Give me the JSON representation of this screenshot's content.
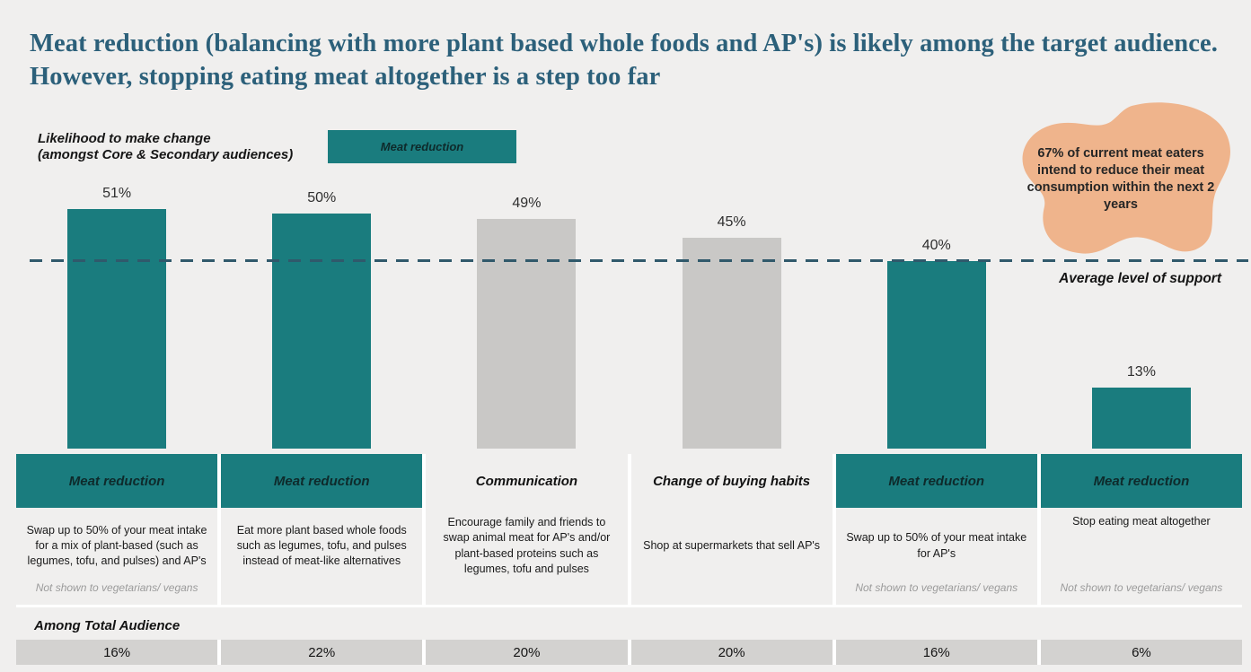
{
  "title": "Meat reduction (balancing with more plant based whole foods and AP's) is likely among the target audience. However, stopping eating meat altogether is a step too far",
  "colors": {
    "page_bg": "#f0efee",
    "teal": "#1a7c7e",
    "bar_gray": "#c9c8c6",
    "footer_box_gray": "#d3d2d0",
    "title_color": "#2c607a",
    "dashed_line": "#30596b",
    "note_gray": "#9b9b9b",
    "callout_orange": "#efb48c"
  },
  "chart": {
    "axis_label_line1": "Likelihood to make change",
    "axis_label_line2": "(amongst Core & Secondary audiences)",
    "legend_label": "Meat reduction",
    "callout": "67% of current meat eaters intend to reduce their meat consumption within the next 2 years",
    "average_line_label": "Average level of support"
  },
  "chart_data": {
    "type": "bar",
    "title": "Likelihood to make change (amongst Core & Secondary audiences)",
    "unit": "%",
    "ylim": [
      0,
      55
    ],
    "grid": false,
    "legend": [
      "Meat reduction"
    ],
    "legend_position": "top",
    "categories": [
      "Meat reduction",
      "Meat reduction",
      "Communication",
      "Change of buying habits",
      "Meat reduction",
      "Meat reduction"
    ],
    "values": [
      51,
      50,
      49,
      45,
      40,
      13
    ],
    "highlighted": [
      true,
      true,
      false,
      false,
      true,
      true
    ],
    "descriptions": [
      "Swap up to 50% of your meat intake for a mix of plant-based (such as legumes, tofu, and pulses) and AP's",
      "Eat more plant based whole foods such as legumes, tofu, and pulses instead of meat-like alternatives",
      "Encourage family and friends to swap animal meat for AP's and/or plant-based proteins such as legumes, tofu and pulses",
      "Shop at supermarkets that sell AP's",
      "Swap up to 50% of your meat intake for AP's",
      "Stop eating meat altogether"
    ],
    "notes": [
      "Not shown to vegetarians/ vegans",
      "",
      "",
      "",
      "Not shown to vegetarians/ vegans",
      "Not shown to vegetarians/ vegans"
    ],
    "among_total_audience": [
      16,
      22,
      20,
      20,
      16,
      6
    ],
    "average_line": {
      "label": "Average level of support",
      "value": 40
    },
    "annotation": "67% of current meat eaters intend to reduce their meat consumption within the next 2 years"
  },
  "footer": {
    "label": "Among Total Audience"
  }
}
